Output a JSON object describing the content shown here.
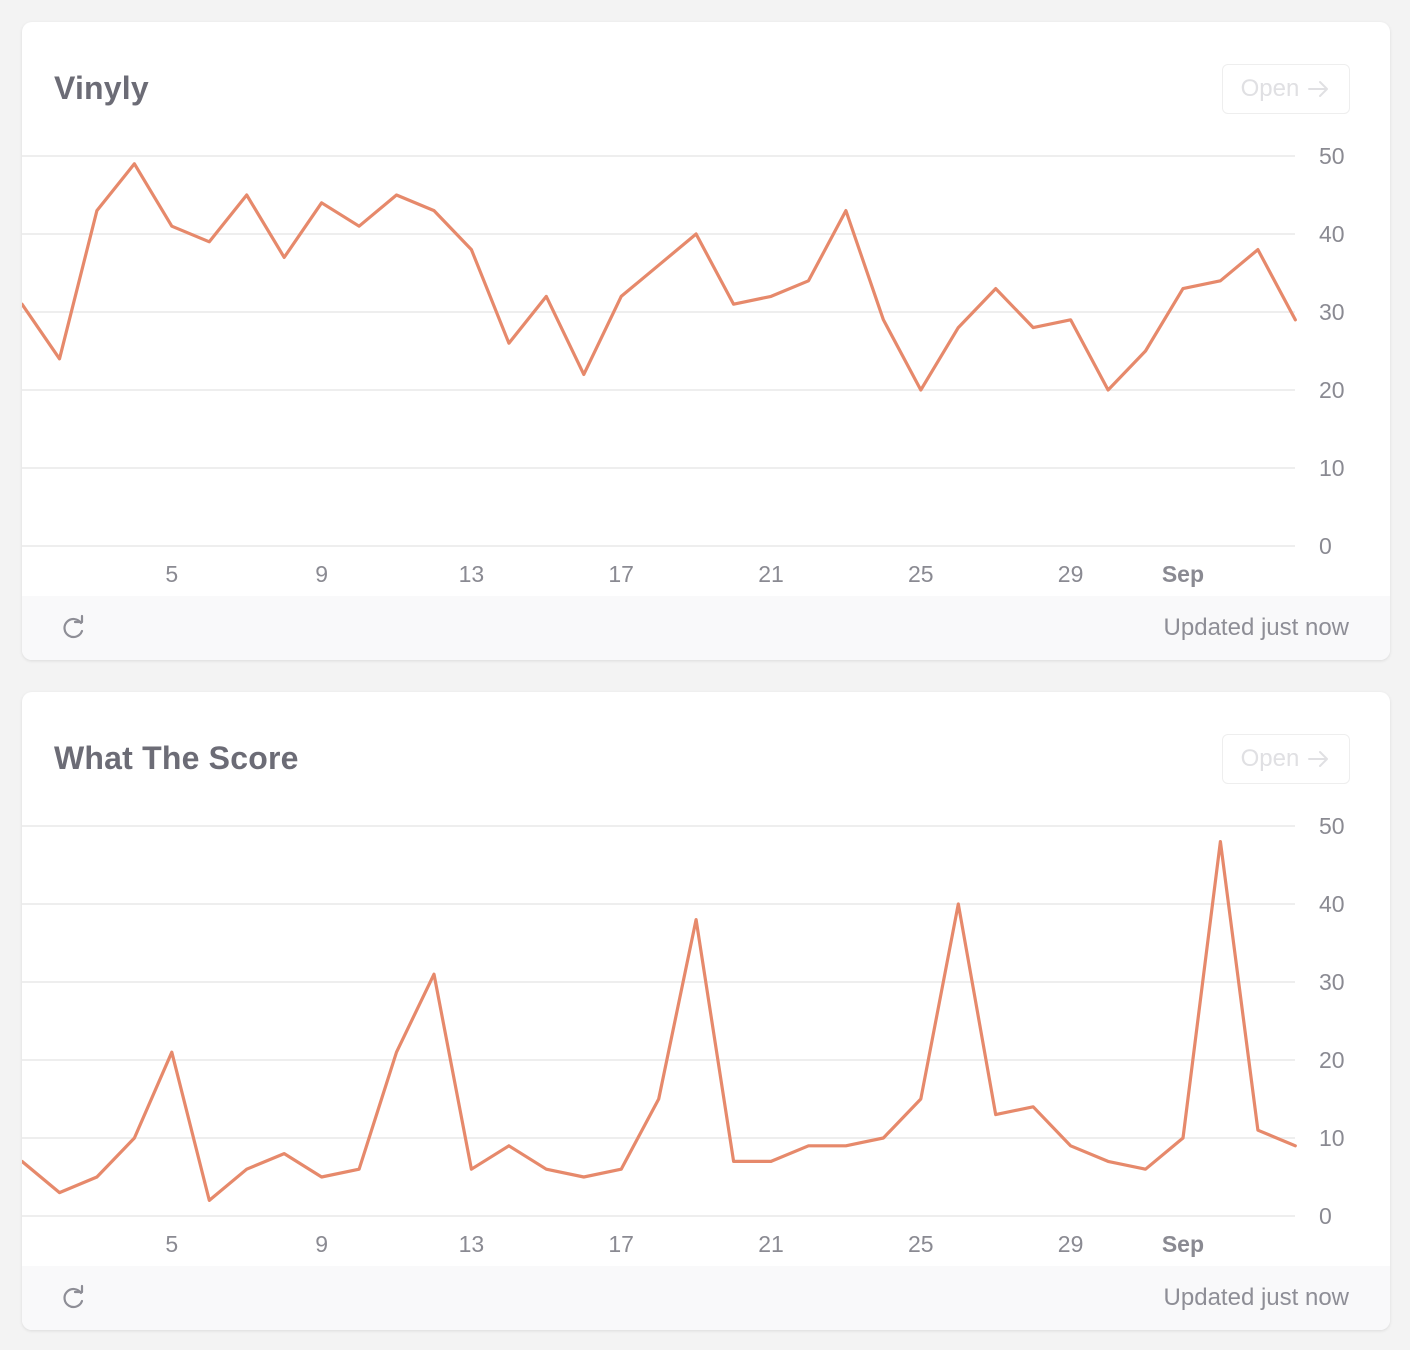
{
  "colors": {
    "line": "#e6896b",
    "grid": "#eeeeee",
    "text_muted": "#8a8a92"
  },
  "cards": [
    {
      "title": "Vinyly",
      "open_label": "Open",
      "open_icon": "arrow-right-icon",
      "footer": {
        "refresh_icon": "refresh-icon",
        "updated": "Updated just now"
      }
    },
    {
      "title": "What The Score",
      "open_label": "Open",
      "open_icon": "arrow-right-icon",
      "footer": {
        "refresh_icon": "refresh-icon",
        "updated": "Updated just now"
      }
    }
  ],
  "chart_data": [
    {
      "type": "line",
      "title": "Vinyly",
      "x": [
        "Aug 1",
        "Aug 2",
        "Aug 3",
        "Aug 4",
        "Aug 5",
        "Aug 6",
        "Aug 7",
        "Aug 8",
        "Aug 9",
        "Aug 10",
        "Aug 11",
        "Aug 12",
        "Aug 13",
        "Aug 14",
        "Aug 15",
        "Aug 16",
        "Aug 17",
        "Aug 18",
        "Aug 19",
        "Aug 20",
        "Aug 21",
        "Aug 22",
        "Aug 23",
        "Aug 24",
        "Aug 25",
        "Aug 26",
        "Aug 27",
        "Aug 28",
        "Aug 29",
        "Aug 30",
        "Aug 31",
        "Sep 1",
        "Sep 2",
        "Sep 3",
        "Sep 4"
      ],
      "values": [
        31,
        24,
        43,
        49,
        41,
        39,
        45,
        37,
        44,
        41,
        45,
        43,
        38,
        26,
        32,
        22,
        32,
        36,
        40,
        31,
        32,
        34,
        43,
        29,
        20,
        28,
        33,
        28,
        29,
        20,
        25,
        33,
        34,
        38,
        29
      ],
      "x_tick_labels": [
        "5",
        "9",
        "13",
        "17",
        "21",
        "25",
        "29",
        "Sep"
      ],
      "x_tick_values": [
        "Aug 5",
        "Aug 9",
        "Aug 13",
        "Aug 17",
        "Aug 21",
        "Aug 25",
        "Aug 29",
        "Sep 1"
      ],
      "y_ticks": [
        0,
        10,
        20,
        30,
        40,
        50
      ],
      "ylim": [
        0,
        50
      ],
      "grid": true,
      "y_axis_side": "right"
    },
    {
      "type": "line",
      "title": "What The Score",
      "x": [
        "Aug 1",
        "Aug 2",
        "Aug 3",
        "Aug 4",
        "Aug 5",
        "Aug 6",
        "Aug 7",
        "Aug 8",
        "Aug 9",
        "Aug 10",
        "Aug 11",
        "Aug 12",
        "Aug 13",
        "Aug 14",
        "Aug 15",
        "Aug 16",
        "Aug 17",
        "Aug 18",
        "Aug 19",
        "Aug 20",
        "Aug 21",
        "Aug 22",
        "Aug 23",
        "Aug 24",
        "Aug 25",
        "Aug 26",
        "Aug 27",
        "Aug 28",
        "Aug 29",
        "Aug 30",
        "Aug 31",
        "Sep 1",
        "Sep 2",
        "Sep 3",
        "Sep 4"
      ],
      "values": [
        7,
        3,
        5,
        10,
        21,
        2,
        6,
        8,
        5,
        6,
        21,
        31,
        6,
        9,
        6,
        5,
        6,
        15,
        38,
        7,
        7,
        9,
        9,
        10,
        15,
        40,
        13,
        14,
        9,
        7,
        6,
        10,
        48,
        11,
        9
      ],
      "x_tick_labels": [
        "5",
        "9",
        "13",
        "17",
        "21",
        "25",
        "29",
        "Sep"
      ],
      "x_tick_values": [
        "Aug 5",
        "Aug 9",
        "Aug 13",
        "Aug 17",
        "Aug 21",
        "Aug 25",
        "Aug 29",
        "Sep 1"
      ],
      "y_ticks": [
        0,
        10,
        20,
        30,
        40,
        50
      ],
      "ylim": [
        0,
        50
      ],
      "grid": true,
      "y_axis_side": "right"
    }
  ]
}
